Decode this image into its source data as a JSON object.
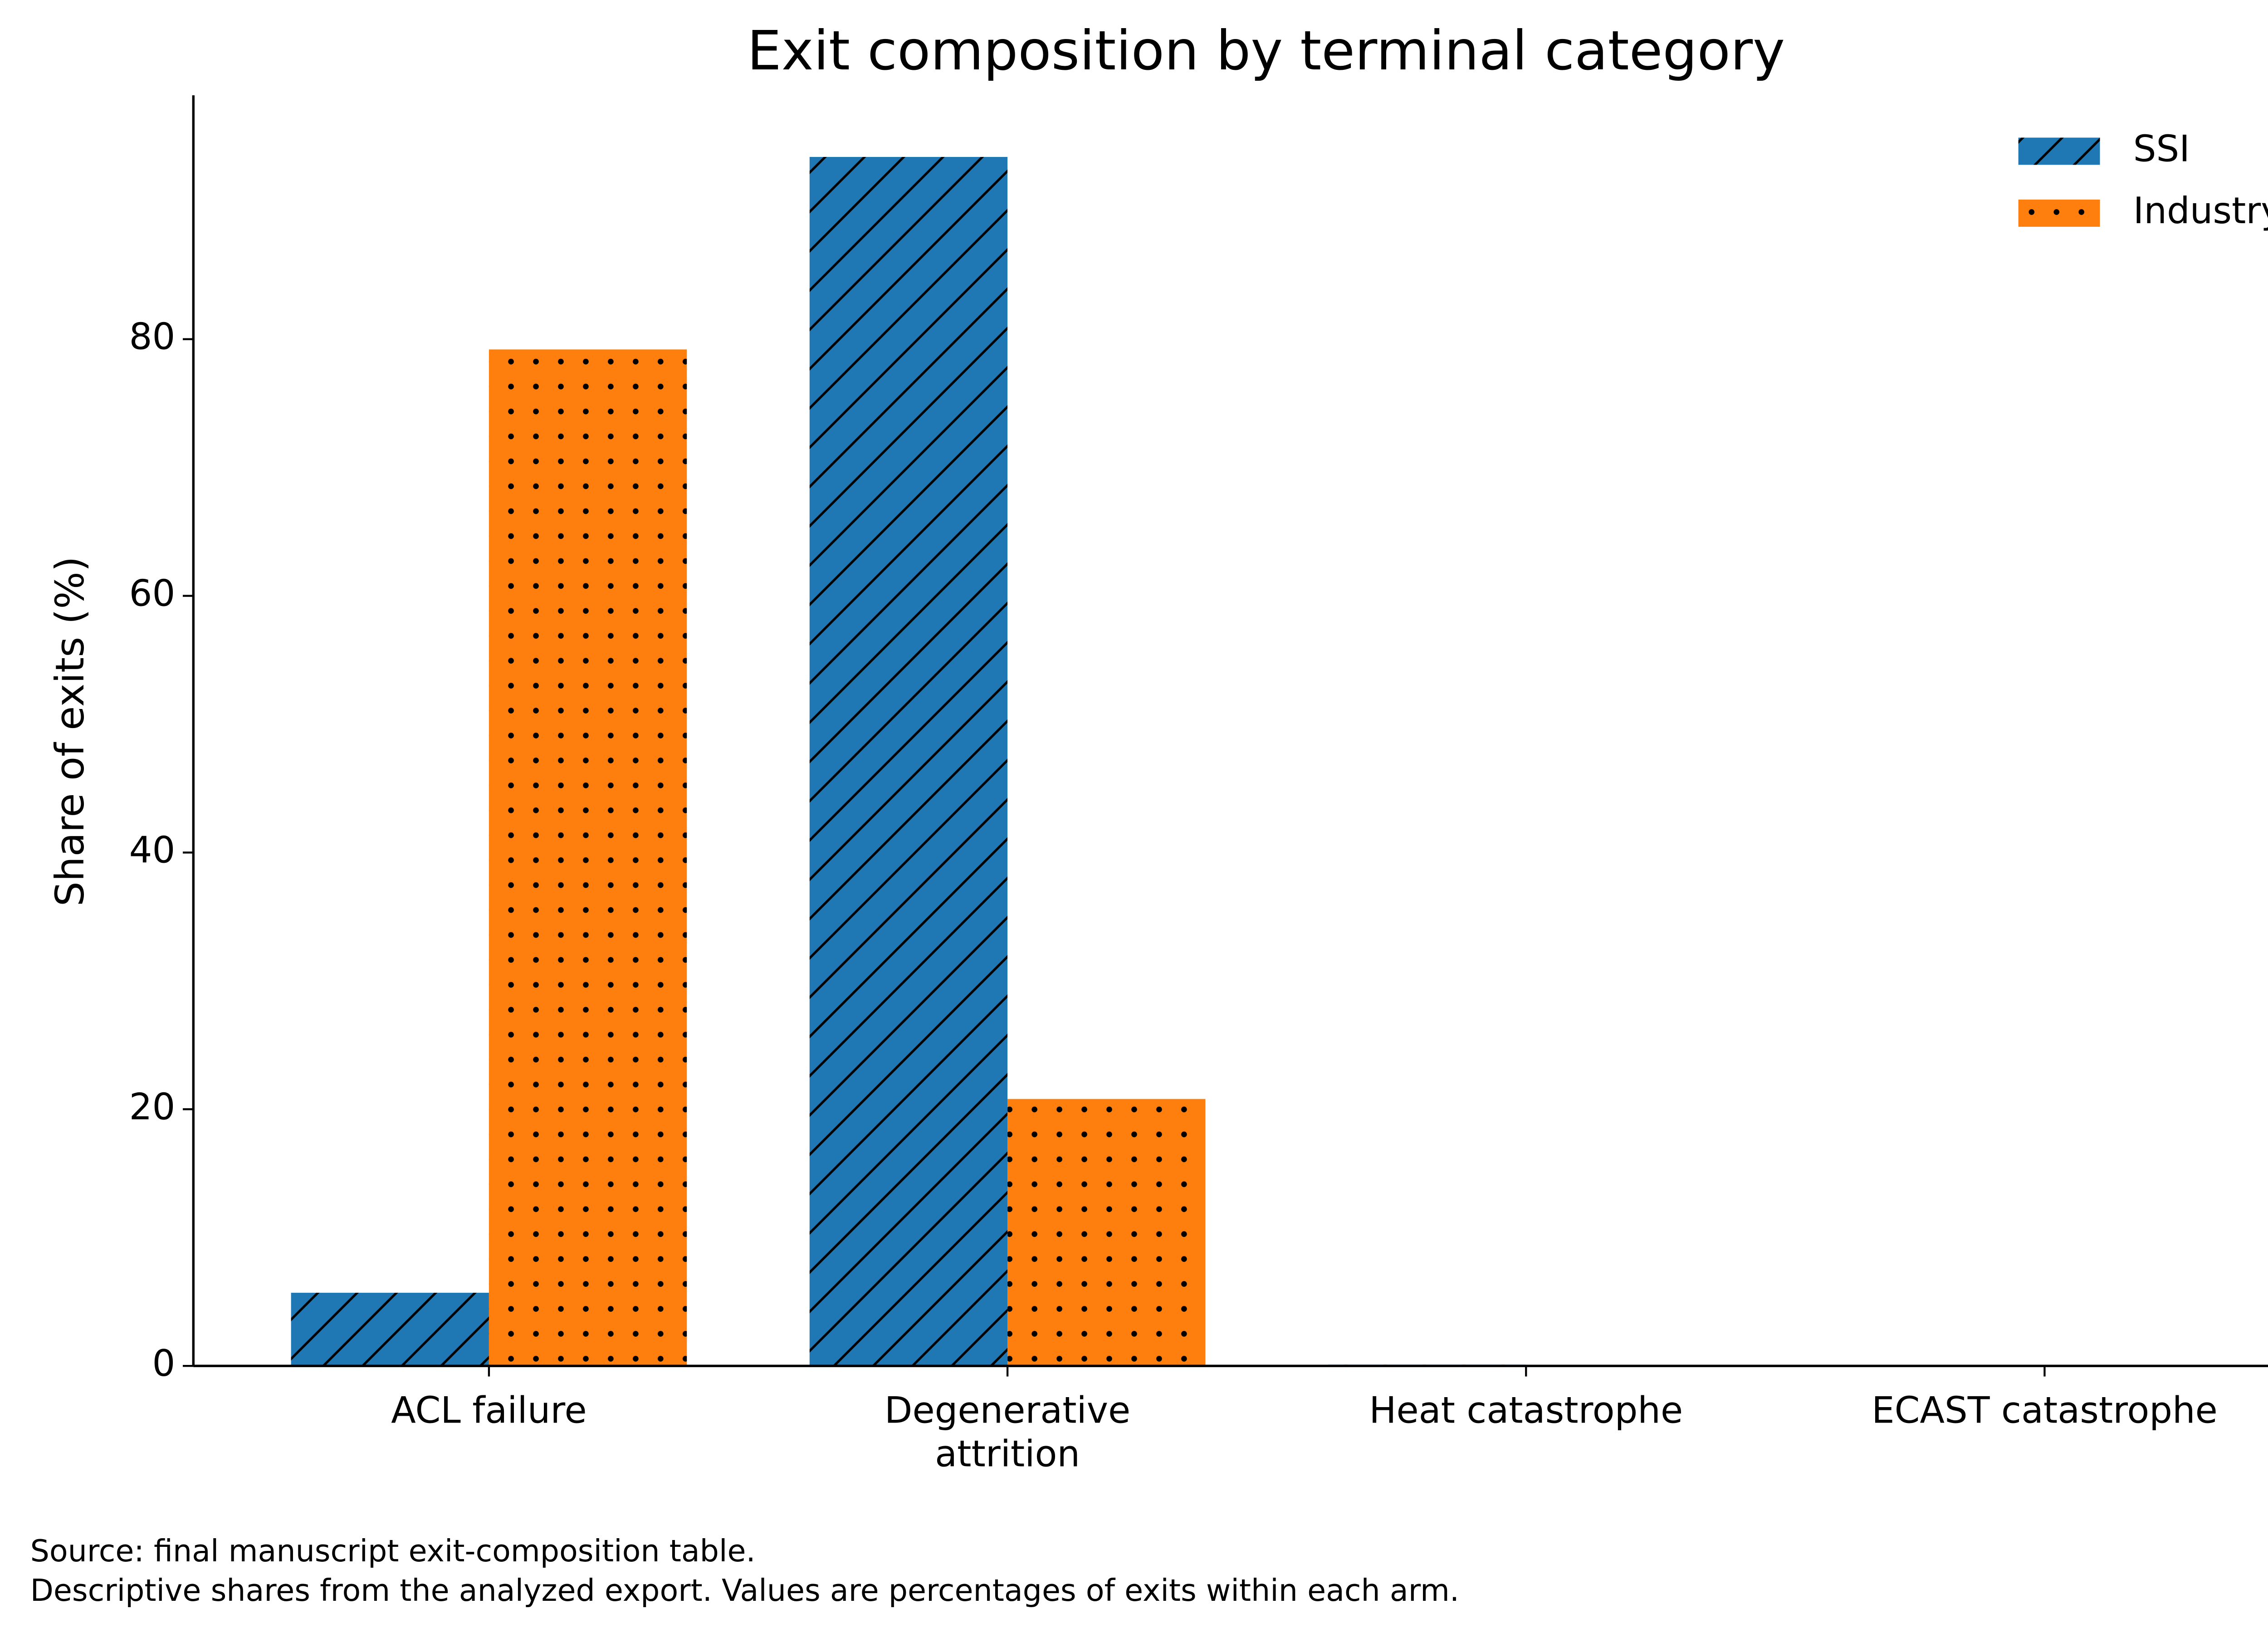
{
  "chart_data": {
    "type": "bar",
    "title": "Exit composition by terminal category",
    "y_label": "Share of exits (%)",
    "categories": [
      "ACL failure",
      "Degenerative\nattrition",
      "Heat catastrophe",
      "ECAST catastrophe"
    ],
    "series": [
      {
        "name": "SSI",
        "color": "#1f77b4",
        "hatch": "diagonal",
        "values": [
          5.7,
          94.2,
          0.1,
          0
        ]
      },
      {
        "name": "Industry",
        "color": "#ff7f0e",
        "hatch": "dots",
        "values": [
          79.2,
          20.8,
          0,
          0
        ]
      }
    ],
    "ylim": [
      0,
      99
    ],
    "yticks": [
      0,
      20,
      40,
      60,
      80
    ],
    "legend": "upper right",
    "grid": false,
    "notes": [
      "Source: final manuscript exit-composition table.",
      "Descriptive shares from the analyzed export. Values are percentages of exits within each arm."
    ]
  }
}
